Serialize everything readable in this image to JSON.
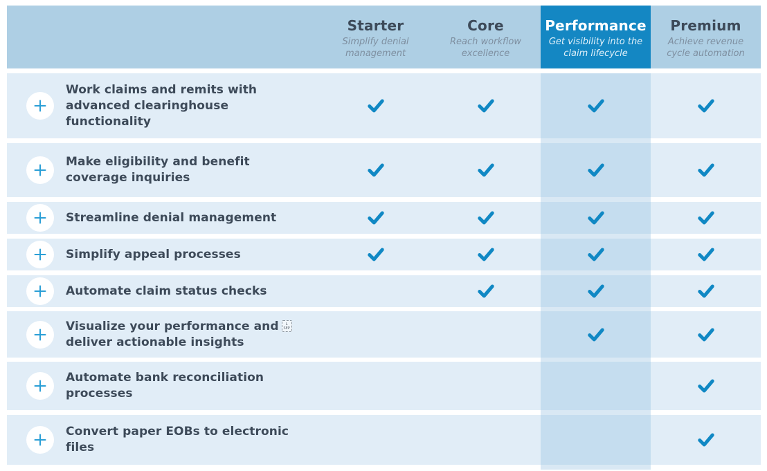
{
  "table": {
    "columns": [
      {
        "label": "Starter",
        "tagline": "Simplify denial management",
        "highlight": false
      },
      {
        "label": "Core",
        "tagline": "Reach workflow excellence",
        "highlight": false
      },
      {
        "label": "Performance",
        "tagline": "Get visibility into the claim lifecycle",
        "highlight": true
      },
      {
        "label": "Premium",
        "tagline": "Achieve revenue cycle automation",
        "highlight": false
      }
    ],
    "rows": [
      {
        "feature_lines": [
          "Work claims and remits with",
          "advanced clearinghouse",
          "functionality"
        ],
        "checks": [
          true,
          true,
          true,
          true
        ]
      },
      {
        "feature_lines": [
          "Make eligibility and benefit",
          "coverage inquiries"
        ],
        "checks": [
          true,
          true,
          true,
          true
        ]
      },
      {
        "feature_lines": [
          "Streamline denial management"
        ],
        "checks": [
          true,
          true,
          true,
          true
        ]
      },
      {
        "feature_lines": [
          "Simplify appeal processes"
        ],
        "checks": [
          true,
          true,
          true,
          true
        ]
      },
      {
        "feature_lines": [
          "Automate claim status checks"
        ],
        "checks": [
          false,
          true,
          true,
          true
        ]
      },
      {
        "feature_lines": [
          "Visualize your performance and {SEP}",
          "deliver actionable insights"
        ],
        "checks": [
          false,
          false,
          true,
          true
        ]
      },
      {
        "feature_lines": [
          "Automate bank reconciliation",
          "processes"
        ],
        "checks": [
          false,
          false,
          false,
          true
        ]
      },
      {
        "feature_lines": [
          "Convert paper EOBs to electronic",
          "files"
        ],
        "checks": [
          false,
          false,
          false,
          true
        ]
      }
    ],
    "artifact_glyph": {
      "top": "L",
      "bottom": "SEP"
    },
    "colors": {
      "header_bg": "#aecfe4",
      "highlight_header_bg": "#1487c3",
      "row_bg": "#e1edf7",
      "highlight_cell_bg": "#c5ddef",
      "highlight_strip_bg": "#d9e8f4",
      "check": "#1088c4",
      "plus": "#2b9fd6",
      "title_text": "#3d4a59",
      "tagline_text": "#7e8fa0"
    }
  }
}
